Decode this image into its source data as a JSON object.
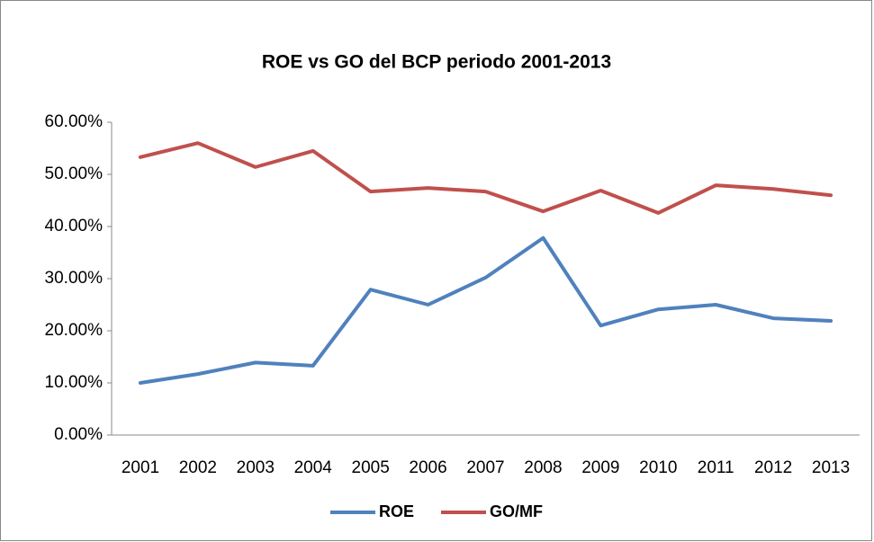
{
  "chart_data": {
    "type": "line",
    "title": "ROE vs GO del BCP periodo 2001-2013",
    "categories": [
      "2001",
      "2002",
      "2003",
      "2004",
      "2005",
      "2006",
      "2007",
      "2008",
      "2009",
      "2010",
      "2011",
      "2012",
      "2013"
    ],
    "series": [
      {
        "name": "ROE",
        "color": "#4f81bd",
        "values": [
          10.0,
          11.7,
          13.9,
          13.3,
          27.9,
          25.0,
          30.2,
          37.8,
          21.0,
          24.1,
          25.0,
          22.4,
          21.9
        ]
      },
      {
        "name": "GO/MF",
        "color": "#c0504d",
        "values": [
          53.3,
          56.0,
          51.4,
          54.5,
          46.7,
          47.4,
          46.7,
          42.9,
          46.9,
          42.6,
          47.9,
          47.2,
          46.0
        ]
      }
    ],
    "ylim": [
      0,
      60
    ],
    "yticks": [
      {
        "value": 0,
        "label": "0.00%"
      },
      {
        "value": 10,
        "label": "10.00%"
      },
      {
        "value": 20,
        "label": "20.00%"
      },
      {
        "value": 30,
        "label": "30.00%"
      },
      {
        "value": 40,
        "label": "40.00%"
      },
      {
        "value": 50,
        "label": "50.00%"
      },
      {
        "value": 60,
        "label": "60.00%"
      }
    ],
    "grid": false,
    "legend": "bottom"
  }
}
